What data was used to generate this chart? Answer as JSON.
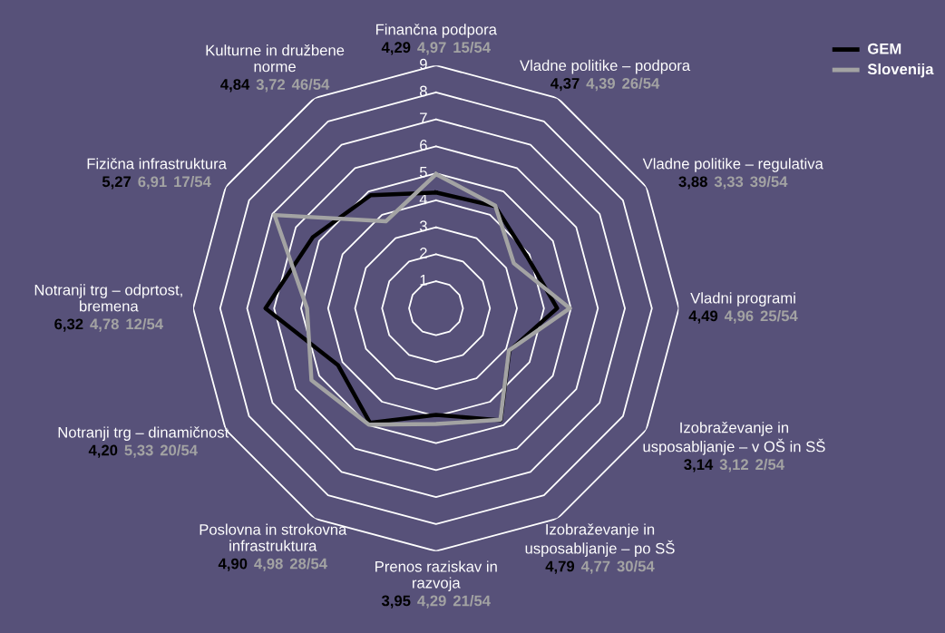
{
  "chart_data": {
    "type": "radar",
    "categories": [
      "Finančna podpora",
      "Vladne politike – podpora",
      "Vladne politike – regulativa",
      "Vladni programi",
      "Izobraževanje in\nusposabljanje – v OŠ in SŠ",
      "Izobraževanje in\nusposabljanje – po SŠ",
      "Prenos raziskav in\nrazvoja",
      "Poslovna in strokovna\ninfrastruktura",
      "Notranji trg – dinamičnost",
      "Notranji trg – odprtost,\nbremena",
      "Fizična infrastruktura",
      "Kulturne in družbene\nnorme"
    ],
    "series": [
      {
        "name": "GEM",
        "color": "#000000",
        "values": [
          4.29,
          4.37,
          3.88,
          4.49,
          3.14,
          4.79,
          3.95,
          4.9,
          4.2,
          6.32,
          5.27,
          4.84
        ]
      },
      {
        "name": "Slovenija",
        "color": "#a3a3a3",
        "values": [
          4.97,
          4.39,
          3.33,
          4.96,
          3.12,
          4.77,
          4.29,
          4.98,
          5.33,
          4.78,
          6.91,
          3.72
        ]
      }
    ],
    "annotations": [
      "4,29",
      "4,97",
      "15/54",
      "4,37",
      "4,39",
      "26/54",
      "3,88",
      "3,33",
      "39/54",
      "4,49",
      "4,96",
      "25/54",
      "3,14",
      "3,12",
      "2/54",
      "4,79",
      "4,77",
      "30/54",
      "3,95",
      "4,29",
      "21/54",
      "4,90",
      "4,98",
      "28/54",
      "4,20",
      "5,33",
      "20/54",
      "6,32",
      "4,78",
      "12/54",
      "5,27",
      "6,91",
      "17/54",
      "4,84",
      "3,72",
      "46/54"
    ],
    "ylim": [
      0,
      9
    ],
    "yticks": [
      1,
      2,
      3,
      4,
      5,
      6,
      7,
      8,
      9
    ],
    "grid": true,
    "legend": "top right"
  }
}
